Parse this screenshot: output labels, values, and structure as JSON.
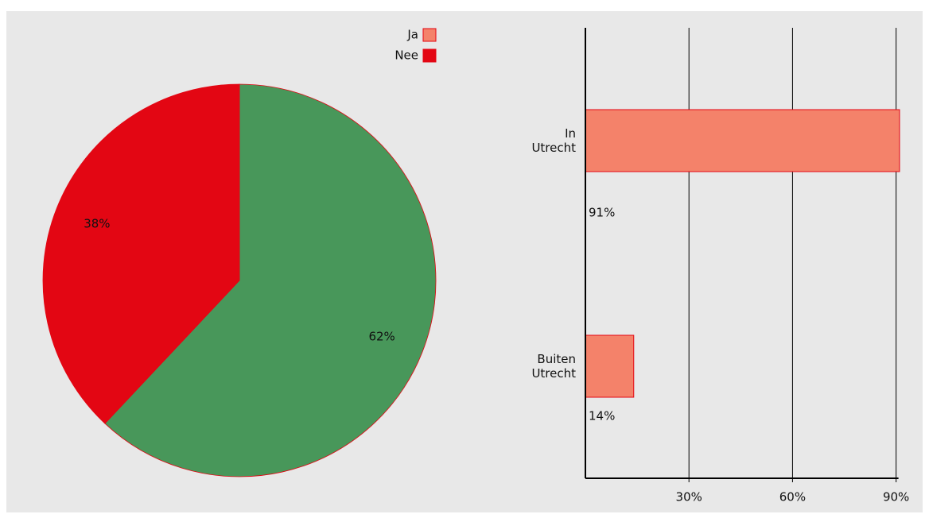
{
  "chart_data": [
    {
      "type": "pie",
      "categories": [
        null,
        null
      ],
      "values": [
        62,
        38
      ],
      "value_labels": [
        "62%",
        "38%"
      ],
      "colors": [
        "#48975a",
        "#e30613"
      ],
      "legend": [
        {
          "name": "Ja",
          "color": "#f4826a"
        },
        {
          "name": "Nee",
          "color": "#e30613"
        }
      ]
    },
    {
      "type": "hbar",
      "categories": [
        "In Utrecht",
        "Buiten Utrecht"
      ],
      "values": [
        91,
        14
      ],
      "value_labels": [
        "91%",
        "14%"
      ],
      "color": "#f4826a",
      "xlim": [
        0,
        97
      ],
      "xticks": [
        {
          "value": 30,
          "label": "30%"
        },
        {
          "value": 60,
          "label": "60%"
        },
        {
          "value": 90,
          "label": "90%"
        }
      ],
      "grid": true
    }
  ]
}
